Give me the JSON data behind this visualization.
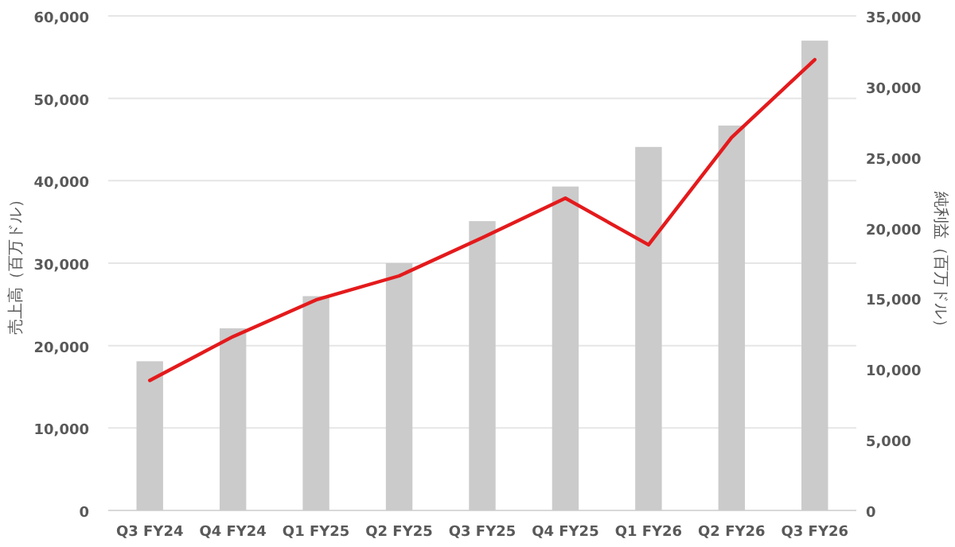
{
  "chart_data": {
    "type": "bar",
    "ylabel": "売上高（百万ドル）",
    "y2label": "純利益（百万ドル）",
    "categories": [
      "Q3 FY24",
      "Q4 FY24",
      "Q1 FY25",
      "Q2 FY25",
      "Q3 FY25",
      "Q4 FY25",
      "Q1 FY26",
      "Q2 FY26",
      "Q3 FY26"
    ],
    "series": [
      {
        "color": "#cbcbcb",
        "values": [
          18100,
          22100,
          26000,
          30000,
          35100,
          39300,
          44100,
          46700,
          57000
        ]
      },
      {
        "type": "line",
        "axis": "y2",
        "color": "#e41a1c",
        "values": [
          9200,
          12300,
          14900,
          16600,
          19300,
          22100,
          18800,
          26400,
          31900
        ]
      }
    ],
    "ylim": [
      0,
      60000
    ],
    "yticks": [
      {
        "value": 0,
        "label": "0"
      },
      {
        "value": 10000,
        "label": "10,000"
      },
      {
        "value": 20000,
        "label": "20,000"
      },
      {
        "value": 30000,
        "label": "30,000"
      },
      {
        "value": 40000,
        "label": "40,000"
      },
      {
        "value": 50000,
        "label": "50,000"
      },
      {
        "value": 60000,
        "label": "60,000"
      }
    ],
    "y2lim": [
      0,
      35000
    ],
    "y2ticks": [
      {
        "value": 0,
        "label": "0"
      },
      {
        "value": 5000,
        "label": "5,000"
      },
      {
        "value": 10000,
        "label": "10,000"
      },
      {
        "value": 15000,
        "label": "15,000"
      },
      {
        "value": 20000,
        "label": "20,000"
      },
      {
        "value": 25000,
        "label": "25,000"
      },
      {
        "value": 30000,
        "label": "30,000"
      },
      {
        "value": 35000,
        "label": "35,000"
      }
    ],
    "grid": "y",
    "marker": "none",
    "line_style": "solid"
  }
}
